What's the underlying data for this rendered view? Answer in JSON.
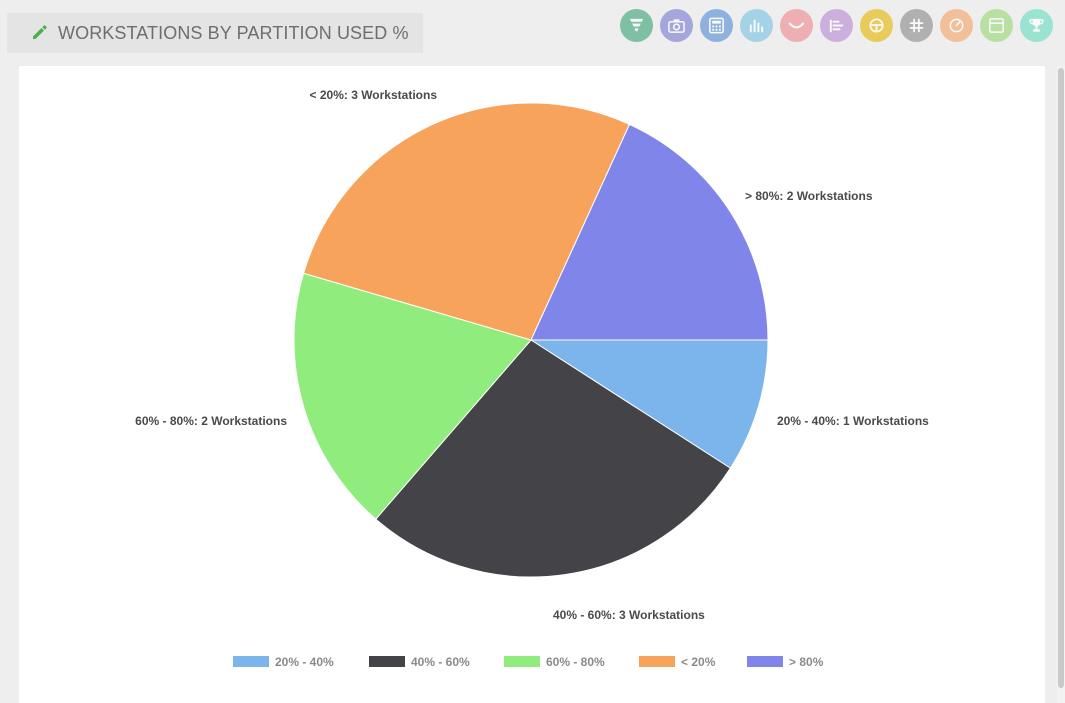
{
  "header": {
    "title": "WORKSTATIONS BY PARTITION USED %",
    "edit_icon": "pencil-icon"
  },
  "toolbar": [
    {
      "name": "funnel-icon",
      "color": "#5bb08c"
    },
    {
      "name": "camera-icon",
      "color": "#8c8fd6"
    },
    {
      "name": "calculator-icon",
      "color": "#6f9fd8"
    },
    {
      "name": "bar-chart-icon",
      "color": "#8ccbe6"
    },
    {
      "name": "curve-icon",
      "color": "#ef9aa0"
    },
    {
      "name": "list-icon",
      "color": "#c29ad8"
    },
    {
      "name": "steering-icon",
      "color": "#e7c02a"
    },
    {
      "name": "hash-icon",
      "color": "#9c9c9c"
    },
    {
      "name": "gauge-icon",
      "color": "#f3b07d"
    },
    {
      "name": "panel-icon",
      "color": "#a8dc8a"
    },
    {
      "name": "trophy-icon",
      "color": "#7fe0c6"
    }
  ],
  "chart_data": {
    "type": "pie",
    "slices": [
      {
        "category": "20% - 40%",
        "value": 1,
        "label": "20% - 40%: 1 Workstations",
        "color": "#7cb5ec"
      },
      {
        "category": "40% - 60%",
        "value": 3,
        "label": "40% - 60%: 3 Workstations",
        "color": "#434348"
      },
      {
        "category": "60% - 80%",
        "value": 2,
        "label": "60% - 80%: 2 Workstations",
        "color": "#90ed7d"
      },
      {
        "category": "< 20%",
        "value": 3,
        "label": "< 20%: 3 Workstations",
        "color": "#f7a35c"
      },
      {
        "category": "> 80%",
        "value": 2,
        "label": "> 80%: 2 Workstations",
        "color": "#8085e9"
      }
    ],
    "start": "3 o'clock, clockwise",
    "legend_position": "bottom-center"
  }
}
